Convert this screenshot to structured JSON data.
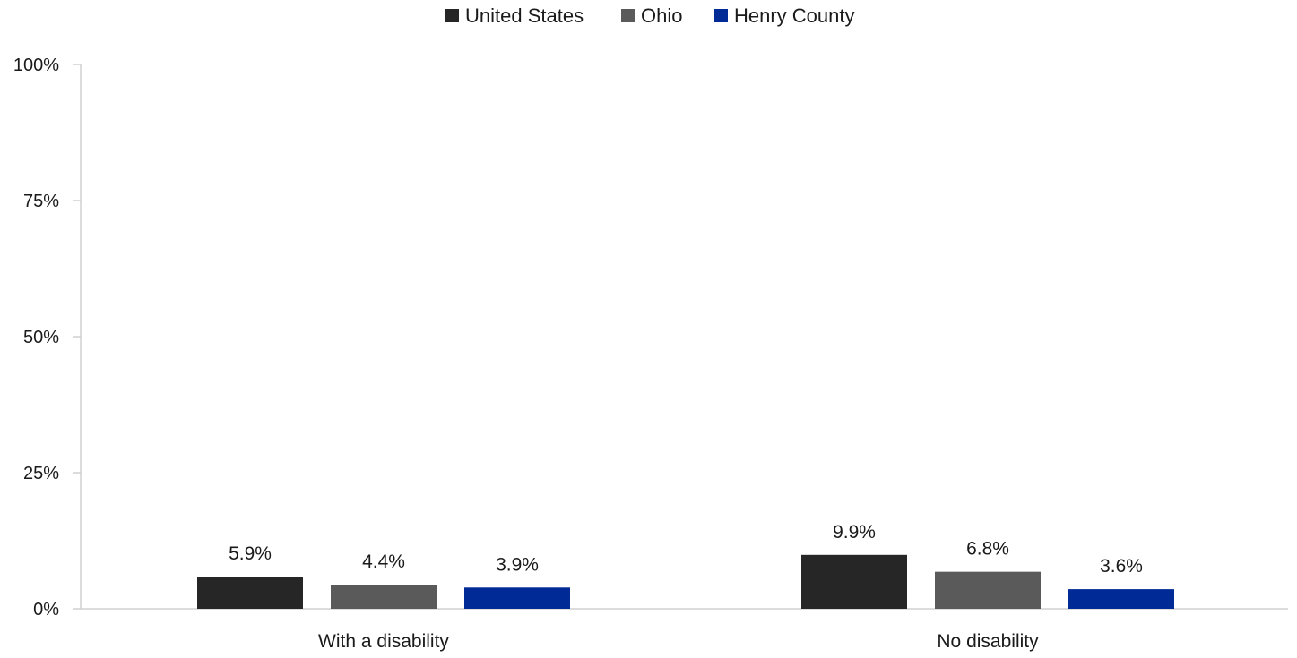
{
  "chart_data": {
    "type": "bar",
    "title": "",
    "xlabel": "",
    "ylabel": "",
    "ylim": [
      0,
      100
    ],
    "yticks": [
      0,
      25,
      50,
      75,
      100
    ],
    "ytick_suffix": "%",
    "grid": false,
    "legend_position": "top-center",
    "categories": [
      "With a disability",
      "No disability"
    ],
    "series": [
      {
        "name": "United States",
        "color": "#262626",
        "values": [
          5.9,
          9.9
        ],
        "labels": [
          "5.9%",
          "9.9%"
        ]
      },
      {
        "name": "Ohio",
        "color": "#5a5a5a",
        "values": [
          4.4,
          6.8
        ],
        "labels": [
          "4.4%",
          "6.8%"
        ]
      },
      {
        "name": "Henry County",
        "color": "#002a95",
        "values": [
          3.9,
          3.6
        ],
        "labels": [
          "3.9%",
          "3.6%"
        ]
      }
    ]
  }
}
